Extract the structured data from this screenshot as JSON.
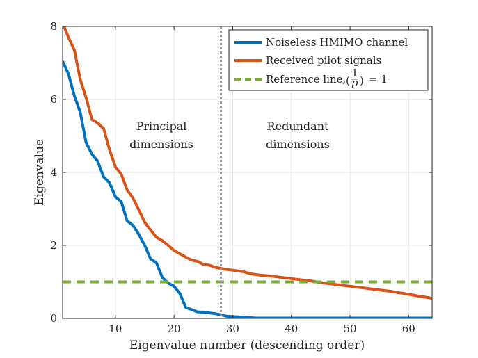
{
  "chart_data": {
    "type": "line",
    "xlabel": "Eigenvalue number (descending order)",
    "ylabel": "Eigenvalue",
    "xlim": [
      1,
      64
    ],
    "ylim": [
      0,
      8
    ],
    "xticks": [
      10,
      20,
      30,
      40,
      50,
      60
    ],
    "yticks": [
      0,
      2,
      4,
      6,
      8
    ],
    "grid": true,
    "legend_position": "top-right",
    "x": [
      1,
      2,
      3,
      4,
      5,
      6,
      7,
      8,
      9,
      10,
      11,
      12,
      13,
      14,
      15,
      16,
      17,
      18,
      19,
      20,
      21,
      22,
      23,
      24,
      25,
      26,
      27,
      28,
      29,
      30,
      31,
      32,
      33,
      34,
      35,
      36,
      37,
      38,
      39,
      40,
      41,
      42,
      43,
      44,
      45,
      46,
      47,
      48,
      49,
      50,
      51,
      52,
      53,
      54,
      55,
      56,
      57,
      58,
      59,
      60,
      61,
      62,
      63,
      64
    ],
    "series": [
      {
        "name": "Noiseless HMIMO channel",
        "color": "#0072BD",
        "values": [
          7.05,
          6.7,
          6.1,
          5.65,
          4.82,
          4.5,
          4.3,
          3.87,
          3.72,
          3.33,
          3.2,
          2.67,
          2.55,
          2.3,
          2.0,
          1.63,
          1.52,
          1.12,
          0.97,
          0.88,
          0.68,
          0.3,
          0.24,
          0.18,
          0.17,
          0.15,
          0.13,
          0.1,
          0.06,
          0.05,
          0.04,
          0.03,
          0.02,
          0.01,
          0.01,
          0.01,
          0.01,
          0.01,
          0.01,
          0.01,
          0.01,
          0.01,
          0.01,
          0.01,
          0.01,
          0.01,
          0.01,
          0.01,
          0.01,
          0.01,
          0.01,
          0.01,
          0.01,
          0.01,
          0.01,
          0.01,
          0.01,
          0.01,
          0.01,
          0.01,
          0.01,
          0.01,
          0.01,
          0.01
        ]
      },
      {
        "name": "Received pilot signals",
        "color": "#D95319",
        "values": [
          8.1,
          7.7,
          7.35,
          6.55,
          6.05,
          5.45,
          5.35,
          5.2,
          4.62,
          4.15,
          3.95,
          3.52,
          3.3,
          2.97,
          2.63,
          2.42,
          2.22,
          2.13,
          2.0,
          1.86,
          1.77,
          1.68,
          1.6,
          1.56,
          1.48,
          1.46,
          1.4,
          1.37,
          1.34,
          1.32,
          1.3,
          1.27,
          1.22,
          1.2,
          1.18,
          1.17,
          1.15,
          1.13,
          1.11,
          1.09,
          1.07,
          1.05,
          1.03,
          1.01,
          0.98,
          0.96,
          0.94,
          0.92,
          0.9,
          0.88,
          0.86,
          0.84,
          0.82,
          0.8,
          0.78,
          0.76,
          0.74,
          0.71,
          0.69,
          0.66,
          0.63,
          0.6,
          0.58,
          0.55
        ]
      },
      {
        "name": "Reference line, (1/ρ) = 1",
        "color": "#77AC30",
        "dashed": true,
        "values": [
          1.0,
          1.0
        ],
        "x": [
          1,
          64
        ]
      }
    ],
    "vline": {
      "x": 28,
      "color": "#999999",
      "style": "dotted"
    },
    "annotations": {
      "principal_line1": "Principal",
      "principal_line2": "dimensions",
      "redundant_line1": "Redundant",
      "redundant_line2": "dimensions"
    },
    "legend": {
      "entry1": "Noiseless HMIMO channel",
      "entry2": "Received pilot signals",
      "entry3_prefix": "Reference line,",
      "entry3_num": "1",
      "entry3_den": "ρ",
      "entry3_suffix": "= 1"
    }
  }
}
